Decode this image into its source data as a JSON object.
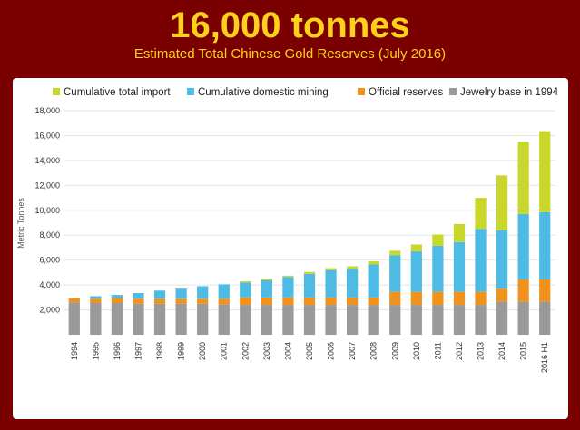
{
  "header": {
    "title": "16,000 tonnes",
    "subtitle": "Estimated Total Chinese Gold Reserves (July 2016)"
  },
  "chart_data": {
    "type": "bar",
    "stacked": true,
    "ylabel": "Metric Tonnes",
    "ylim": [
      0,
      18000
    ],
    "y_ticks": [
      "2,000",
      "4,000",
      "6,000",
      "8,000",
      "10,000",
      "12,000",
      "14,000",
      "16,000",
      "18,000"
    ],
    "y_tick_values": [
      2000,
      4000,
      6000,
      8000,
      10000,
      12000,
      14000,
      16000,
      18000
    ],
    "grid": "horizontal",
    "legend_position": "top",
    "categories": [
      "1994",
      "1995",
      "1996",
      "1997",
      "1998",
      "1999",
      "2000",
      "2001",
      "2002",
      "2003",
      "2004",
      "2005",
      "2006",
      "2007",
      "2008",
      "2009",
      "2010",
      "2011",
      "2012",
      "2013",
      "2014",
      "2015",
      "2016 H1"
    ],
    "series": [
      {
        "name": "Jewelry base in 1994",
        "color": "#9a9a9a",
        "values": [
          2600,
          2550,
          2550,
          2500,
          2500,
          2500,
          2500,
          2450,
          2400,
          2400,
          2400,
          2400,
          2400,
          2400,
          2400,
          2400,
          2400,
          2400,
          2400,
          2400,
          2650,
          2650,
          2650
        ]
      },
      {
        "name": "Official reserves",
        "color": "#f0921e",
        "values": [
          350,
          350,
          400,
          400,
          400,
          400,
          400,
          450,
          600,
          600,
          600,
          600,
          600,
          600,
          600,
          1050,
          1050,
          1050,
          1050,
          1050,
          1050,
          1800,
          1800
        ]
      },
      {
        "name": "Cumulative domestic mining",
        "color": "#4dbbe3",
        "values": [
          0,
          200,
          250,
          450,
          650,
          800,
          1000,
          1150,
          1200,
          1400,
          1650,
          1900,
          2200,
          2300,
          2650,
          2950,
          3250,
          3700,
          4000,
          5050,
          4700,
          5250,
          5400
        ]
      },
      {
        "name": "Cumulative total import",
        "color": "#c9d72c",
        "values": [
          0,
          0,
          0,
          0,
          0,
          0,
          0,
          0,
          100,
          100,
          100,
          150,
          150,
          200,
          250,
          350,
          550,
          900,
          1450,
          2500,
          4400,
          5800,
          6500
        ]
      }
    ]
  }
}
